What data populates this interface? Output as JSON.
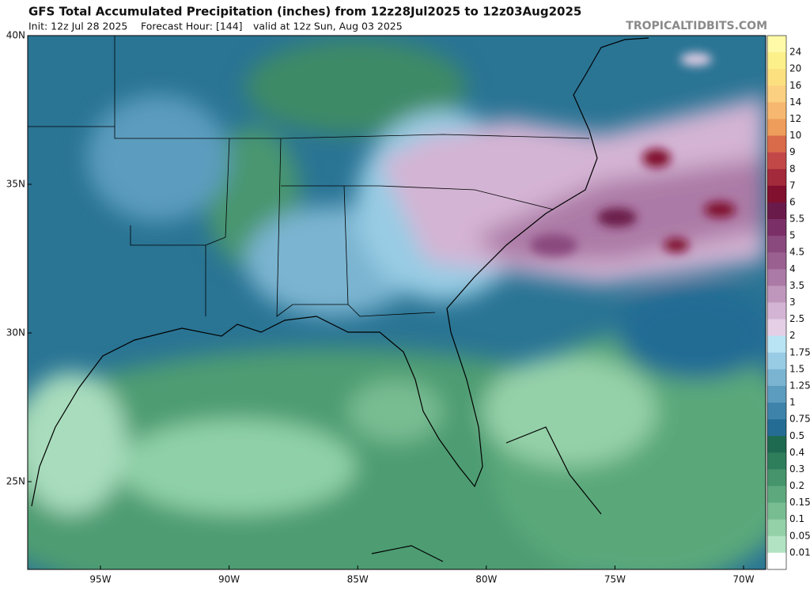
{
  "header": {
    "title": "GFS Total Accumulated Precipitation (inches) from 12z28Jul2025 to 12z03Aug2025",
    "init": "Init: 12z Jul 28 2025",
    "forecast_hour": "Forecast Hour: [144]",
    "valid": "valid at 12z Sun, Aug 03 2025",
    "source": "TROPICALTIDBITS.COM"
  },
  "map": {
    "lat_labels": [
      "40N",
      "35N",
      "30N",
      "25N"
    ],
    "lon_labels": [
      "95W",
      "90W",
      "85W",
      "80W",
      "75W",
      "70W"
    ]
  },
  "colorbar": {
    "labels": [
      "24",
      "20",
      "16",
      "14",
      "12",
      "10",
      "9",
      "8",
      "7",
      "6",
      "5.5",
      "5",
      "4.5",
      "4",
      "3.5",
      "3",
      "2.5",
      "2",
      "1.75",
      "1.5",
      "1.25",
      "1",
      "0.75",
      "0.5",
      "0.4",
      "0.3",
      "0.2",
      "0.15",
      "0.1",
      "0.05",
      "0.01"
    ],
    "colors": [
      "#fffaa8",
      "#fcf08a",
      "#fce080",
      "#fbd080",
      "#f6b870",
      "#ee9d5a",
      "#d96a4a",
      "#c24848",
      "#a22a3a",
      "#80102e",
      "#6a1a4a",
      "#7a3066",
      "#8a4a7e",
      "#9a6090",
      "#ac7aa6",
      "#c097bc",
      "#d4b4d4",
      "#e4cfe6",
      "#b8e4f4",
      "#98cce4",
      "#7ab4d0",
      "#5c9cbe",
      "#3e84aa",
      "#246c94",
      "#1e6a50",
      "#2e7e5c",
      "#46946c",
      "#5ea87e",
      "#78bc92",
      "#94d0a8",
      "#b2e4c4",
      "#ffffff"
    ]
  }
}
